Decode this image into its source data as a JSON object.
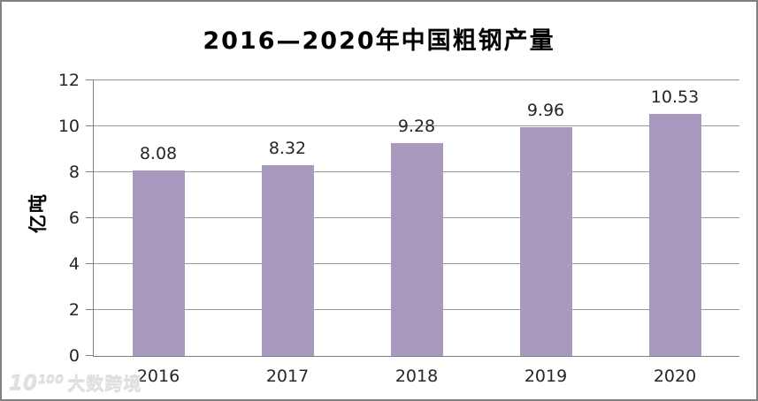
{
  "frame": {
    "background": "#ffffff",
    "border_color": "#818181"
  },
  "chart_data": {
    "type": "bar",
    "title": "2016—2020年中国粗钢产量",
    "categories": [
      "2016",
      "2017",
      "2018",
      "2019",
      "2020"
    ],
    "values": [
      8.08,
      8.32,
      9.28,
      9.96,
      10.53
    ],
    "value_labels": [
      "8.08",
      "8.32",
      "9.28",
      "9.96",
      "10.53"
    ],
    "xlabel": "",
    "ylabel": "亿吨",
    "ylim": [
      0,
      12
    ],
    "yticks": [
      0,
      2,
      4,
      6,
      8,
      10,
      12
    ],
    "grid": true,
    "legend": "none",
    "bar_color": "#a89abe",
    "gridline_color": "#999999",
    "axis_color": "#808080",
    "label_color": "#262626"
  },
  "watermark": {
    "logo": "10¹⁰⁰",
    "text": "大数跨境"
  }
}
